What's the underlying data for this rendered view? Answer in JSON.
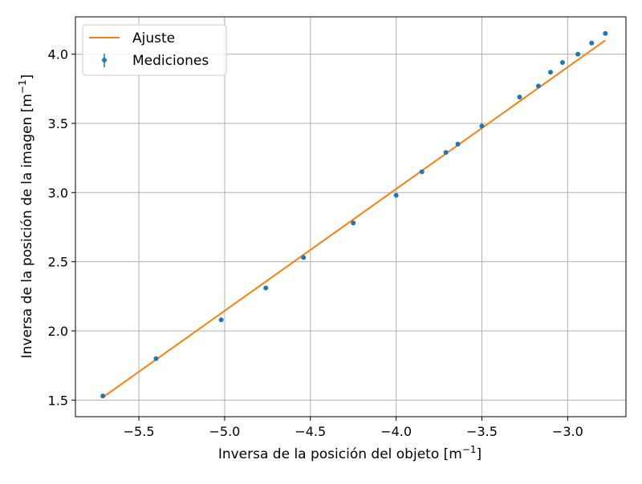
{
  "chart_data": {
    "type": "scatter",
    "xlabel": "Inversa de la posición del objeto",
    "ylabel": "Inversa de la posición de la imagen",
    "unit": "m",
    "unit_exponent": "−1",
    "xlim": [
      -5.87,
      -2.66
    ],
    "ylim": [
      1.38,
      4.27
    ],
    "xticks": [
      -5.5,
      -5.0,
      -4.5,
      -4.0,
      -3.5,
      -3.0
    ],
    "xtick_labels": [
      "−5.5",
      "−5.0",
      "−4.5",
      "−4.0",
      "−3.5",
      "−3.0"
    ],
    "yticks": [
      1.5,
      2.0,
      2.5,
      3.0,
      3.5,
      4.0
    ],
    "ytick_labels": [
      "1.5",
      "2.0",
      "2.5",
      "3.0",
      "3.5",
      "4.0"
    ],
    "grid": true,
    "legend": "top-left",
    "colors": {
      "points": "#1f77b4",
      "fit": "#ff7f0e",
      "grid": "#b0b0b0"
    },
    "series": [
      {
        "name": "Mediciones",
        "kind": "points_with_errorbars",
        "x": [
          -5.71,
          -5.4,
          -5.02,
          -4.76,
          -4.54,
          -4.25,
          -4.0,
          -3.85,
          -3.71,
          -3.64,
          -3.5,
          -3.28,
          -3.17,
          -3.1,
          -3.03,
          -2.94,
          -2.86,
          -2.78
        ],
        "y": [
          1.53,
          1.8,
          2.08,
          2.31,
          2.53,
          2.78,
          2.98,
          3.15,
          3.29,
          3.35,
          3.48,
          3.69,
          3.77,
          3.87,
          3.94,
          4.0,
          4.08,
          4.15
        ]
      },
      {
        "name": "Ajuste",
        "kind": "line",
        "x": [
          -5.71,
          -2.78
        ],
        "y": [
          1.52,
          4.1
        ]
      }
    ]
  }
}
